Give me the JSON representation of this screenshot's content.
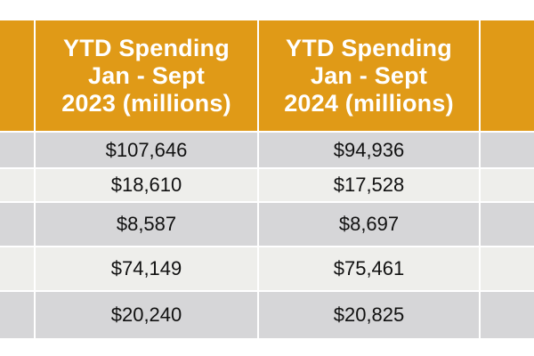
{
  "table": {
    "columns": [
      {
        "header": "YTD Spending\nJan - Sept\n2023 (millions)"
      },
      {
        "header": "YTD Spending\nJan - Sept\n2024 (millions)"
      }
    ],
    "rows": [
      {
        "y2023": "$107,646",
        "y2024": "$94,936"
      },
      {
        "y2023": "$18,610",
        "y2024": "$17,528"
      },
      {
        "y2023": "$8,587",
        "y2024": "$8,697"
      },
      {
        "y2023": "$74,149",
        "y2024": "$75,461"
      },
      {
        "y2023": "$20,240",
        "y2024": "$20,825"
      }
    ]
  },
  "colors": {
    "header_bg": "#e09a17",
    "header_text": "#ffffff",
    "row_gray": "#d6d6d8",
    "row_light": "#eeeeeb",
    "border": "#ffffff"
  }
}
